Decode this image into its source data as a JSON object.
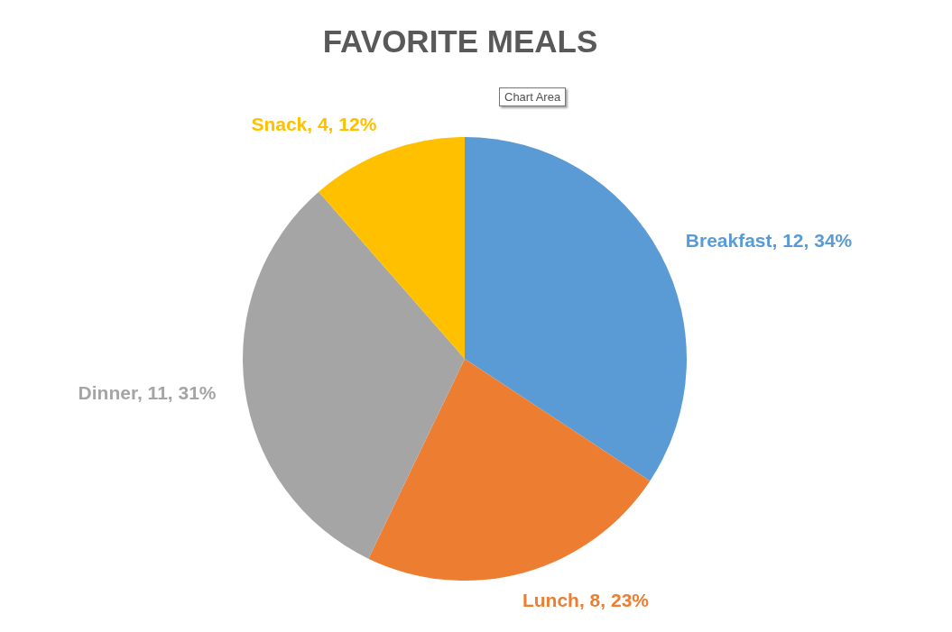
{
  "chart_data": {
    "type": "pie",
    "title": "FAVORITE MEALS",
    "categories": [
      "Breakfast",
      "Lunch",
      "Dinner",
      "Snack"
    ],
    "values": [
      12,
      8,
      11,
      4
    ],
    "colors": [
      "#5b9bd5",
      "#ed7d31",
      "#a5a5a5",
      "#ffc000"
    ],
    "value_labels": [
      "12, 34%",
      "8, 23%",
      "11, 31%",
      "4, 12%"
    ],
    "annotations": [
      "Chart Area"
    ]
  }
}
